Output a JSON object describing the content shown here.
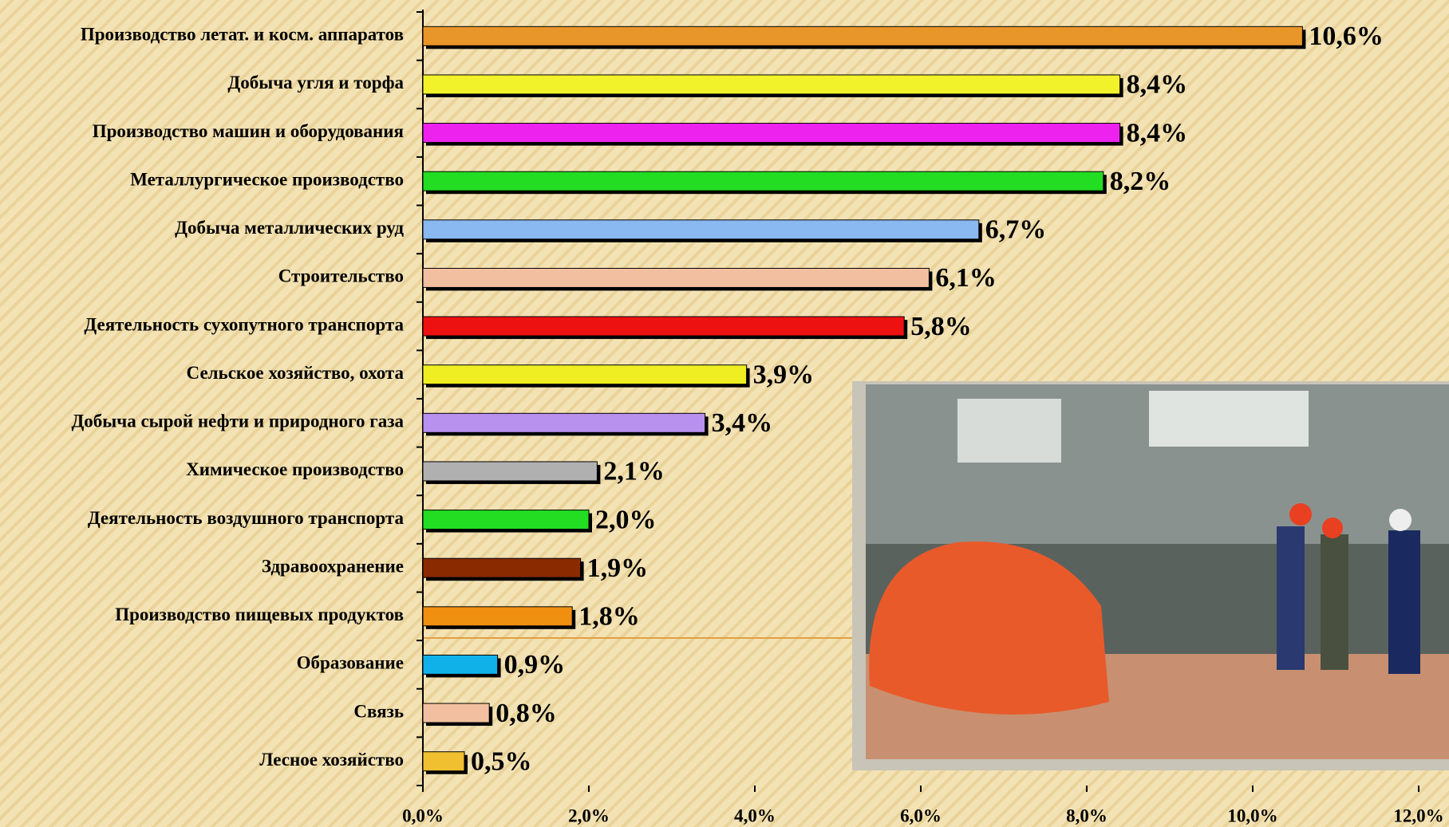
{
  "chart_data": {
    "type": "bar",
    "orientation": "horizontal",
    "categories": [
      "Производство летат. и косм. аппаратов",
      "Добыча угля и торфа",
      "Производство машин и оборудования",
      "Металлургическое производство",
      "Добыча металлических руд",
      "Строительство",
      "Деятельность сухопутного транспорта",
      "Сельское хозяйство, охота",
      "Добыча сырой нефти и природного газа",
      "Химическое производство",
      "Деятельность воздушного транспорта",
      "Здравоохранение",
      "Производство пищевых продуктов",
      "Образование",
      "Связь",
      "Лесное хозяйство"
    ],
    "values": [
      10.6,
      8.4,
      8.4,
      8.2,
      6.7,
      6.1,
      5.8,
      3.9,
      3.4,
      2.1,
      2.0,
      1.9,
      1.8,
      0.9,
      0.8,
      0.5
    ],
    "value_labels": [
      "10,6%",
      "8,4%",
      "8,4%",
      "8,2%",
      "6,7%",
      "6,1%",
      "5,8%",
      "3,9%",
      "3,4%",
      "2,1%",
      "2,0%",
      "1,9%",
      "1,8%",
      "0,9%",
      "0,8%",
      "0,5%"
    ],
    "colors": [
      "#e8952a",
      "#f2f22a",
      "#ee22ee",
      "#22dd22",
      "#8ab8f0",
      "#f2c0a0",
      "#ee1111",
      "#eeee22",
      "#b890ee",
      "#b0b0b0",
      "#22dd22",
      "#8a2a00",
      "#f09010",
      "#10b0e8",
      "#f2c0a0",
      "#f0c030"
    ],
    "xlim": [
      0,
      12
    ],
    "xticks": [
      {
        "value": 0,
        "label": "0,0%"
      },
      {
        "value": 2,
        "label": "2,0%"
      },
      {
        "value": 4,
        "label": "4,0%"
      },
      {
        "value": 6,
        "label": "6,0%"
      },
      {
        "value": 8,
        "label": "8,0%"
      },
      {
        "value": 10,
        "label": "10,0%"
      },
      {
        "value": 12,
        "label": "12,0%"
      }
    ]
  }
}
